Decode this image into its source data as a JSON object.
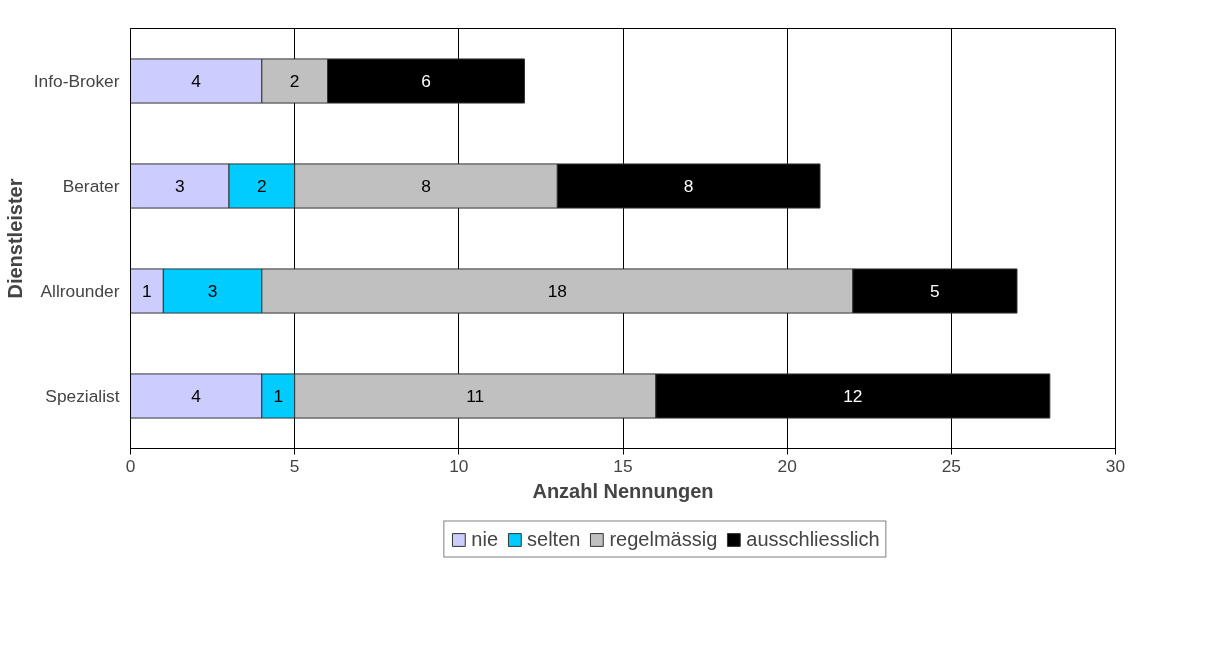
{
  "chart_data": {
    "type": "bar",
    "orientation": "horizontal",
    "stacked": true,
    "xlabel": "Anzahl Nennungen",
    "ylabel": "Dienstleister",
    "categories": [
      "Info-Broker",
      "Berater",
      "Allrounder",
      "Spezialist"
    ],
    "series": [
      {
        "name": "nie",
        "color": "#ccccff",
        "values": [
          4,
          3,
          1,
          4
        ]
      },
      {
        "name": "selten",
        "color": "#00ccff",
        "values": [
          null,
          2,
          3,
          1
        ]
      },
      {
        "name": "regelmässig",
        "color": "#c0c0c0",
        "values": [
          2,
          8,
          18,
          11
        ]
      },
      {
        "name": "ausschliesslich",
        "color": "#000000",
        "values": [
          6,
          8,
          5,
          12
        ]
      }
    ],
    "xlim": [
      0,
      30
    ],
    "xticks": [
      0,
      5,
      10,
      15,
      20,
      25,
      30
    ],
    "grid": "x",
    "legend": "bottom",
    "data_labels": true
  }
}
